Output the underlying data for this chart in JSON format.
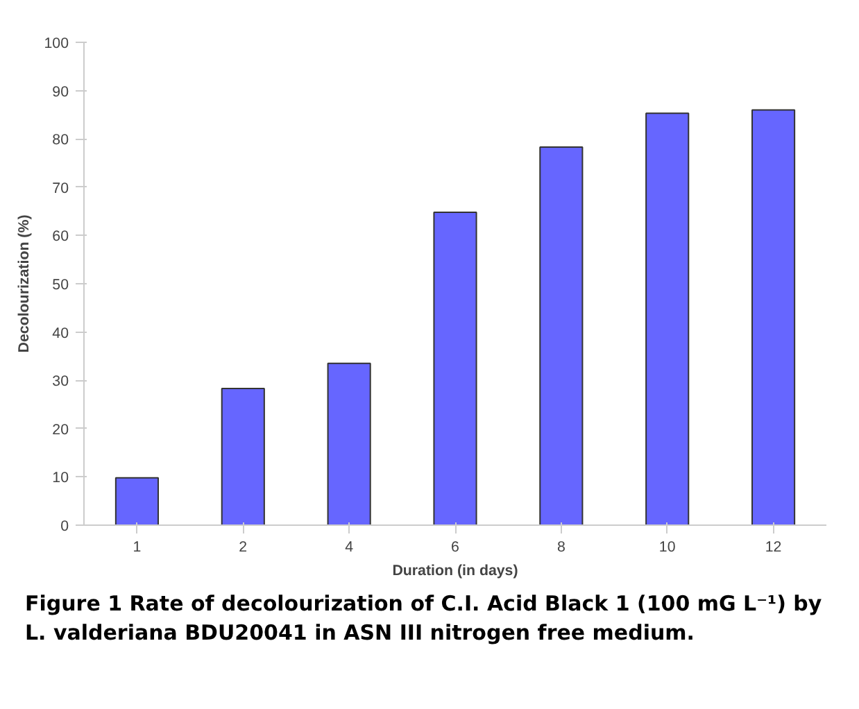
{
  "chart_data": {
    "type": "bar",
    "xlabel": "Duration (in days)",
    "ylabel": "Decolourization (%)",
    "categories": [
      "1",
      "2",
      "4",
      "6",
      "8",
      "10",
      "12"
    ],
    "values": [
      9.8,
      28.3,
      33.5,
      64.8,
      78.3,
      85.3,
      86.0
    ],
    "color": "#6666ff",
    "ylim": [
      0,
      100
    ],
    "yticks": [
      0,
      10,
      20,
      30,
      40,
      50,
      60,
      70,
      80,
      90,
      100
    ],
    "grid": false,
    "annotations": [
      "Figure 1 Rate of decolourization of C.I. Acid Black 1 (100 mG L⁻¹) by L. valderiana BDU20041 in ASN III nitrogen free medium."
    ]
  }
}
